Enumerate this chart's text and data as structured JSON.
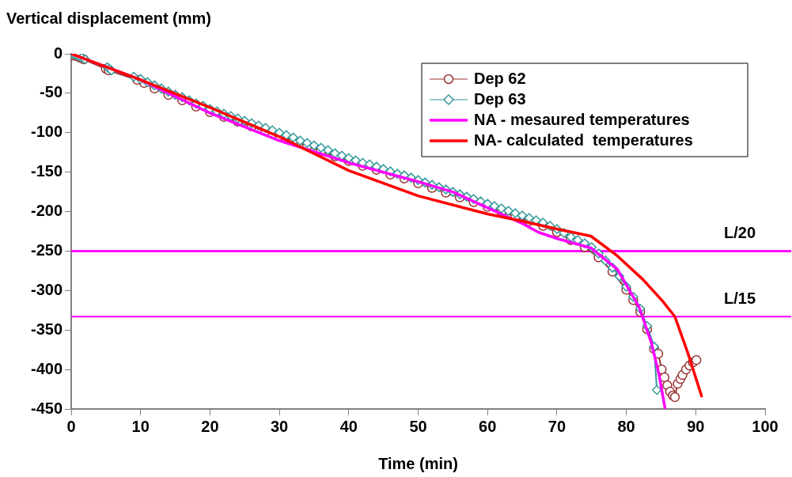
{
  "chart_data": {
    "type": "line",
    "ylabel": "Vertical displacement (mm)",
    "xlabel": "Time (min)",
    "xlim": [
      0,
      100
    ],
    "xticks": [
      0,
      10,
      20,
      30,
      40,
      50,
      60,
      70,
      80,
      90,
      100
    ],
    "ylim": [
      -450,
      0
    ],
    "yticks": [
      -450,
      -400,
      -350,
      -300,
      -250,
      -200,
      -150,
      -100,
      -50,
      0
    ],
    "grid": false,
    "legend": "top right",
    "line_style": "solid",
    "series": [
      {
        "name": "Dep 62",
        "color": "#993333",
        "marker": "circle",
        "x": [
          0.3,
          0.8,
          1.3,
          1.8,
          5.0,
          5.4,
          9.5,
          10.5,
          12,
          14,
          16,
          18,
          20,
          22,
          24,
          26,
          28,
          30,
          32,
          34,
          36,
          38,
          40,
          42,
          44,
          46,
          48,
          50,
          52,
          54,
          56,
          58,
          60,
          62,
          64,
          66,
          68,
          70,
          72,
          74,
          76,
          78,
          80,
          81,
          82,
          83,
          84,
          84.6,
          85.1,
          85.5,
          85.9,
          86.3,
          86.7,
          87,
          87.4,
          87.8,
          88.1,
          88.6,
          89.1,
          89.6,
          90.1
        ],
        "values": [
          -2,
          -3,
          -5,
          -7,
          -19,
          -21,
          -33,
          -37,
          -44,
          -52,
          -59,
          -67,
          -74,
          -80,
          -86,
          -92,
          -98,
          -104,
          -110,
          -117,
          -123,
          -130,
          -136,
          -142,
          -147,
          -153,
          -158,
          -164,
          -170,
          -176,
          -182,
          -188,
          -194,
          -200,
          -206,
          -212,
          -218,
          -226,
          -236,
          -245,
          -258,
          -276,
          -299,
          -312,
          -327,
          -349,
          -374,
          -380,
          -400,
          -410,
          -420,
          -428,
          -433,
          -435,
          -418,
          -412,
          -407,
          -400,
          -395,
          -391,
          -388
        ]
      },
      {
        "name": "Dep 63",
        "color": "#339999",
        "marker": "diamond",
        "x": [
          0,
          0.5,
          1,
          1.5,
          2,
          5.2,
          5.5,
          5.8,
          9,
          10,
          11,
          12,
          13,
          14,
          15,
          16,
          17,
          18,
          19,
          20,
          21,
          22,
          23,
          24,
          25,
          26,
          27,
          28,
          29,
          30,
          31,
          32,
          33,
          34,
          35,
          36,
          37,
          38,
          39,
          40,
          41,
          42,
          43,
          44,
          45,
          46,
          47,
          48,
          49,
          50,
          51,
          52,
          53,
          54,
          55,
          56,
          57,
          58,
          59,
          60,
          61,
          62,
          63,
          64,
          65,
          66,
          67,
          68,
          69,
          70,
          71,
          72,
          73,
          74,
          75,
          76,
          77,
          78,
          79,
          80,
          81,
          82,
          83,
          84,
          84.4
        ],
        "values": [
          0,
          -1,
          -3,
          -5,
          -7,
          -17,
          -19,
          -21,
          -29,
          -32,
          -36,
          -40,
          -44,
          -48,
          -52,
          -55,
          -59,
          -63,
          -66,
          -70,
          -73,
          -76,
          -79,
          -82,
          -85,
          -88,
          -91,
          -94,
          -97,
          -100,
          -103,
          -106,
          -110,
          -113,
          -116,
          -119,
          -122,
          -126,
          -129,
          -132,
          -135,
          -138,
          -140,
          -143,
          -146,
          -149,
          -152,
          -154,
          -157,
          -160,
          -163,
          -166,
          -169,
          -172,
          -175,
          -178,
          -181,
          -184,
          -187,
          -190,
          -193,
          -196,
          -199,
          -202,
          -205,
          -208,
          -211,
          -214,
          -218,
          -222,
          -227,
          -232,
          -236,
          -240,
          -245,
          -253,
          -262,
          -271,
          -282,
          -295,
          -308,
          -323,
          -345,
          -371,
          -426
        ]
      },
      {
        "name": "NA - mesaured temperatures",
        "color": "#ff00ff",
        "marker": "none",
        "x": [
          0,
          10,
          20,
          30,
          40,
          50,
          55,
          60,
          65,
          67.3,
          70,
          74.9,
          78.7,
          81.8,
          83.6,
          84.7,
          85.6
        ],
        "values": [
          0,
          -33,
          -75,
          -110,
          -138,
          -162,
          -175,
          -195,
          -215,
          -226,
          -234,
          -246,
          -273,
          -320,
          -366,
          -406,
          -450
        ]
      },
      {
        "name": "NA- calculated  temperatures",
        "color": "#ff0000",
        "marker": "none",
        "x": [
          0,
          10,
          20,
          30,
          40,
          50,
          60,
          65,
          70,
          74.9,
          78.7,
          82.4,
          85.2,
          87,
          88.9,
          90.9
        ],
        "values": [
          0,
          -33,
          -68,
          -105,
          -148,
          -180,
          -203,
          -212,
          -222,
          -231,
          -256,
          -286,
          -313,
          -333,
          -380,
          -435
        ]
      }
    ],
    "ref_lines": [
      {
        "axis": "y",
        "value": -250,
        "label": "L/20",
        "color": "#ff00ff"
      },
      {
        "axis": "y",
        "value": -333,
        "label": "L/15",
        "color": "#ff00ff"
      }
    ]
  }
}
